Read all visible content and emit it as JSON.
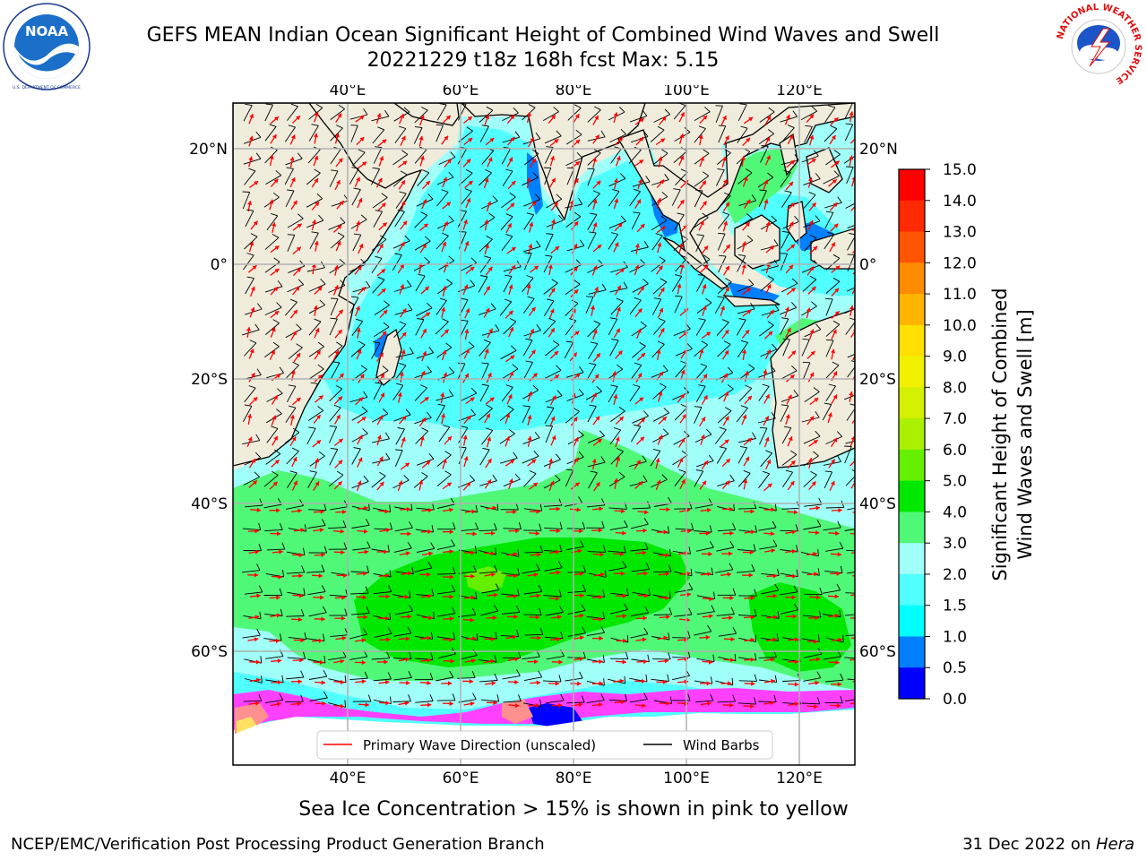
{
  "header": {
    "title_line1": "GEFS MEAN Indian Ocean Significant Height of Combined Wind Waves and Swell",
    "title_line2": "20221229 t18z 168h fcst   Max: 5.15"
  },
  "logos": {
    "left": {
      "name": "noaa-logo",
      "text": "NOAA",
      "ring_text": "NATIONAL OCEANIC AND ATMOSPHERIC ADMINISTRATION · U.S. DEPARTMENT OF COMMERCE"
    },
    "right": {
      "name": "nws-logo",
      "ring_text": "NATIONAL WEATHER SERVICE"
    }
  },
  "map": {
    "top_lon_labels": [
      "40°E",
      "60°E",
      "80°E",
      "100°E",
      "120°E"
    ],
    "bottom_lon_labels": [
      "40°E",
      "60°E",
      "80°E",
      "100°E",
      "120°E"
    ],
    "left_lat_labels": [
      "20°N",
      "0°",
      "20°S",
      "40°S",
      "60°S"
    ],
    "right_lat_labels": [
      "20°N",
      "0°",
      "20°S",
      "40°S",
      "60°S"
    ],
    "extent": {
      "lon_min": 20,
      "lon_max": 130,
      "lat_min": -70,
      "lat_max": 25
    },
    "colors": {
      "land": "#efecdc",
      "ice_free_zone": "#ffffff",
      "wave_direction": "#ff0000",
      "wind_barb": "#000000"
    }
  },
  "legend": {
    "wave_direction_label": "Primary Wave Direction (unscaled)",
    "wind_barb_label": "Wind Barbs"
  },
  "colorbar": {
    "title_line1": "Significant Height of Combined",
    "title_line2": "Wind Waves and Swell [m]",
    "tick_labels": [
      "15.0",
      "14.0",
      "13.0",
      "12.0",
      "11.0",
      "10.0",
      "9.0",
      "8.0",
      "7.0",
      "6.0",
      "5.0",
      "4.0",
      "3.0",
      "2.0",
      "1.5",
      "1.0",
      "0.5",
      "0.0"
    ],
    "bands": [
      {
        "from": 14.0,
        "to": 15.0,
        "color": "#ff0000"
      },
      {
        "from": 13.0,
        "to": 14.0,
        "color": "#ff2a00"
      },
      {
        "from": 12.0,
        "to": 13.0,
        "color": "#ff5500"
      },
      {
        "from": 11.0,
        "to": 12.0,
        "color": "#ff8c00"
      },
      {
        "from": 10.0,
        "to": 11.0,
        "color": "#ffb400"
      },
      {
        "from": 9.0,
        "to": 10.0,
        "color": "#ffe000"
      },
      {
        "from": 8.0,
        "to": 9.0,
        "color": "#f0f000"
      },
      {
        "from": 7.0,
        "to": 8.0,
        "color": "#d2f000"
      },
      {
        "from": 6.0,
        "to": 7.0,
        "color": "#aaf000"
      },
      {
        "from": 5.0,
        "to": 6.0,
        "color": "#64f000"
      },
      {
        "from": 4.0,
        "to": 5.0,
        "color": "#00e800"
      },
      {
        "from": 3.0,
        "to": 4.0,
        "color": "#50f878"
      },
      {
        "from": 2.0,
        "to": 3.0,
        "color": "#a0fff8"
      },
      {
        "from": 1.5,
        "to": 2.0,
        "color": "#50ffff"
      },
      {
        "from": 1.0,
        "to": 1.5,
        "color": "#00ffff"
      },
      {
        "from": 0.5,
        "to": 1.0,
        "color": "#0080ff"
      },
      {
        "from": 0.0,
        "to": 0.5,
        "color": "#0000ff"
      }
    ]
  },
  "footer": {
    "ice_note": "Sea Ice Concentration > 15% is shown in pink to yellow",
    "credit": "NCEP/EMC/Verification Post Processing Product Generation Branch",
    "date_prefix": "31 Dec 2022 on ",
    "machine": "Hera"
  }
}
